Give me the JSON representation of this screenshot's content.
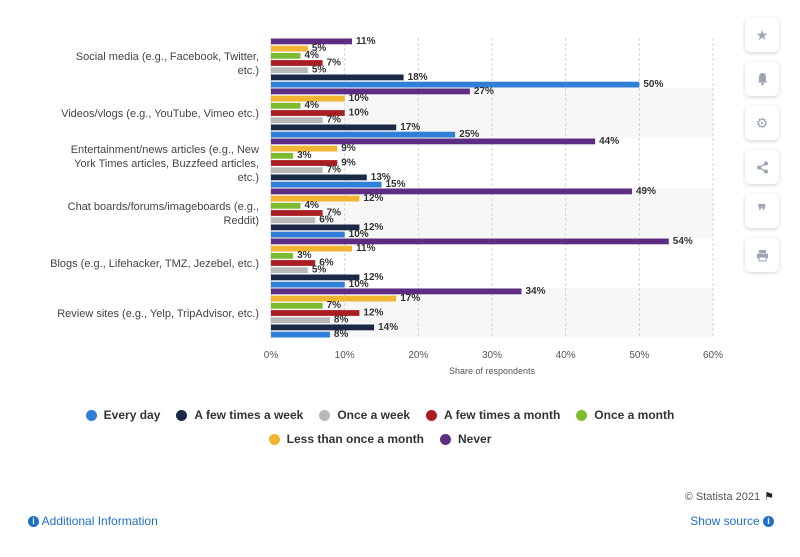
{
  "chart_data": {
    "type": "bar",
    "orientation": "horizontal",
    "categories": [
      [
        "Social media (e.g., Facebook, Twitter,",
        "etc.)"
      ],
      [
        "Videos/vlogs (e.g., YouTube, Vimeo etc.)"
      ],
      [
        "Entertainment/news articles (e.g., New",
        "York Times articles, Buzzfeed articles,",
        "etc.)"
      ],
      [
        "Chat boards/forums/imageboards (e.g.,",
        "Reddit)"
      ],
      [
        "Blogs (e.g., Lifehacker, TMZ, Jezebel, etc.)"
      ],
      [
        "Review sites (e.g., Yelp, TripAdvisor, etc.)"
      ]
    ],
    "series": [
      {
        "name": "Never",
        "color": "#5c2d83",
        "values": [
          11,
          27,
          44,
          49,
          54,
          34
        ]
      },
      {
        "name": "Less than once a month",
        "color": "#f2b531",
        "values": [
          5,
          10,
          9,
          12,
          11,
          17
        ]
      },
      {
        "name": "Once a month",
        "color": "#7dbb2f",
        "values": [
          4,
          4,
          3,
          4,
          3,
          7
        ]
      },
      {
        "name": "A few times a month",
        "color": "#a81e23",
        "values": [
          7,
          10,
          9,
          7,
          6,
          12
        ]
      },
      {
        "name": "Once a week",
        "color": "#b8b8b8",
        "values": [
          5,
          7,
          7,
          6,
          5,
          8
        ]
      },
      {
        "name": "A few times a week",
        "color": "#1a2a46",
        "values": [
          18,
          17,
          13,
          12,
          12,
          14
        ]
      },
      {
        "name": "Every day",
        "color": "#2f7ed8",
        "values": [
          50,
          25,
          15,
          10,
          10,
          8
        ]
      }
    ],
    "legend_order": [
      "Every day",
      "A few times a week",
      "Once a week",
      "A few times a month",
      "Once a month",
      "Less than once a month",
      "Never"
    ],
    "xlabel": "Share of respondents",
    "xlim": [
      0,
      60
    ],
    "xticks": [
      0,
      10,
      20,
      30,
      40,
      50,
      60
    ],
    "tick_suffix": "%",
    "value_suffix": "%",
    "grid": true,
    "legend_position": "bottom"
  },
  "footer": {
    "copyright": "© Statista 2021",
    "additional_info": "Additional Information",
    "show_source": "Show source"
  },
  "sidebar": {
    "buttons": [
      "star-icon",
      "bell-icon",
      "gear-icon",
      "share-icon",
      "quote-icon",
      "print-icon"
    ]
  }
}
